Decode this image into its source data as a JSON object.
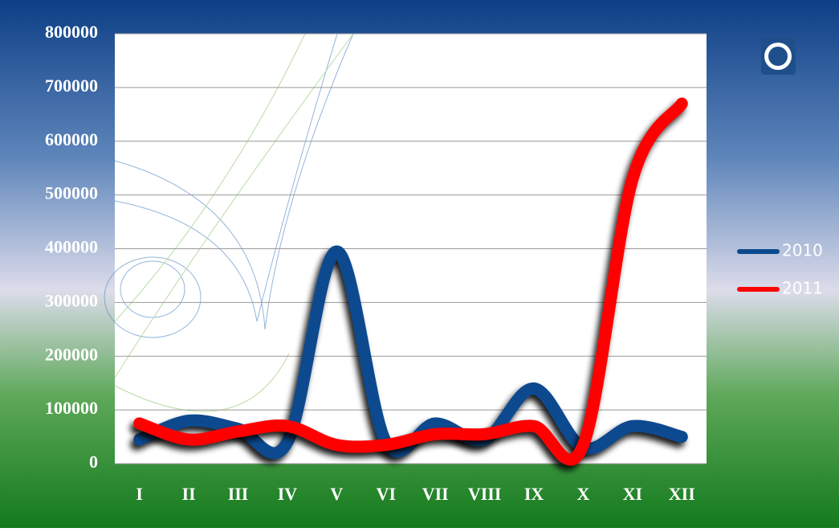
{
  "chart_data": {
    "type": "line",
    "categories": [
      "I",
      "II",
      "III",
      "IV",
      "V",
      "VI",
      "VII",
      "VIII",
      "IX",
      "X",
      "XI",
      "XII"
    ],
    "series": [
      {
        "name": "2010",
        "color": "#0b4a8f",
        "values": [
          45000,
          80000,
          65000,
          40000,
          395000,
          40000,
          75000,
          45000,
          140000,
          30000,
          70000,
          50000
        ]
      },
      {
        "name": "2011",
        "color": "#ff0000",
        "values": [
          75000,
          45000,
          60000,
          70000,
          35000,
          35000,
          55000,
          55000,
          70000,
          35000,
          530000,
          670000
        ]
      }
    ],
    "ylim": [
      0,
      800000
    ],
    "yticks": [
      0,
      100000,
      200000,
      300000,
      400000,
      500000,
      600000,
      700000,
      800000
    ],
    "grid": true,
    "legend": "right"
  }
}
